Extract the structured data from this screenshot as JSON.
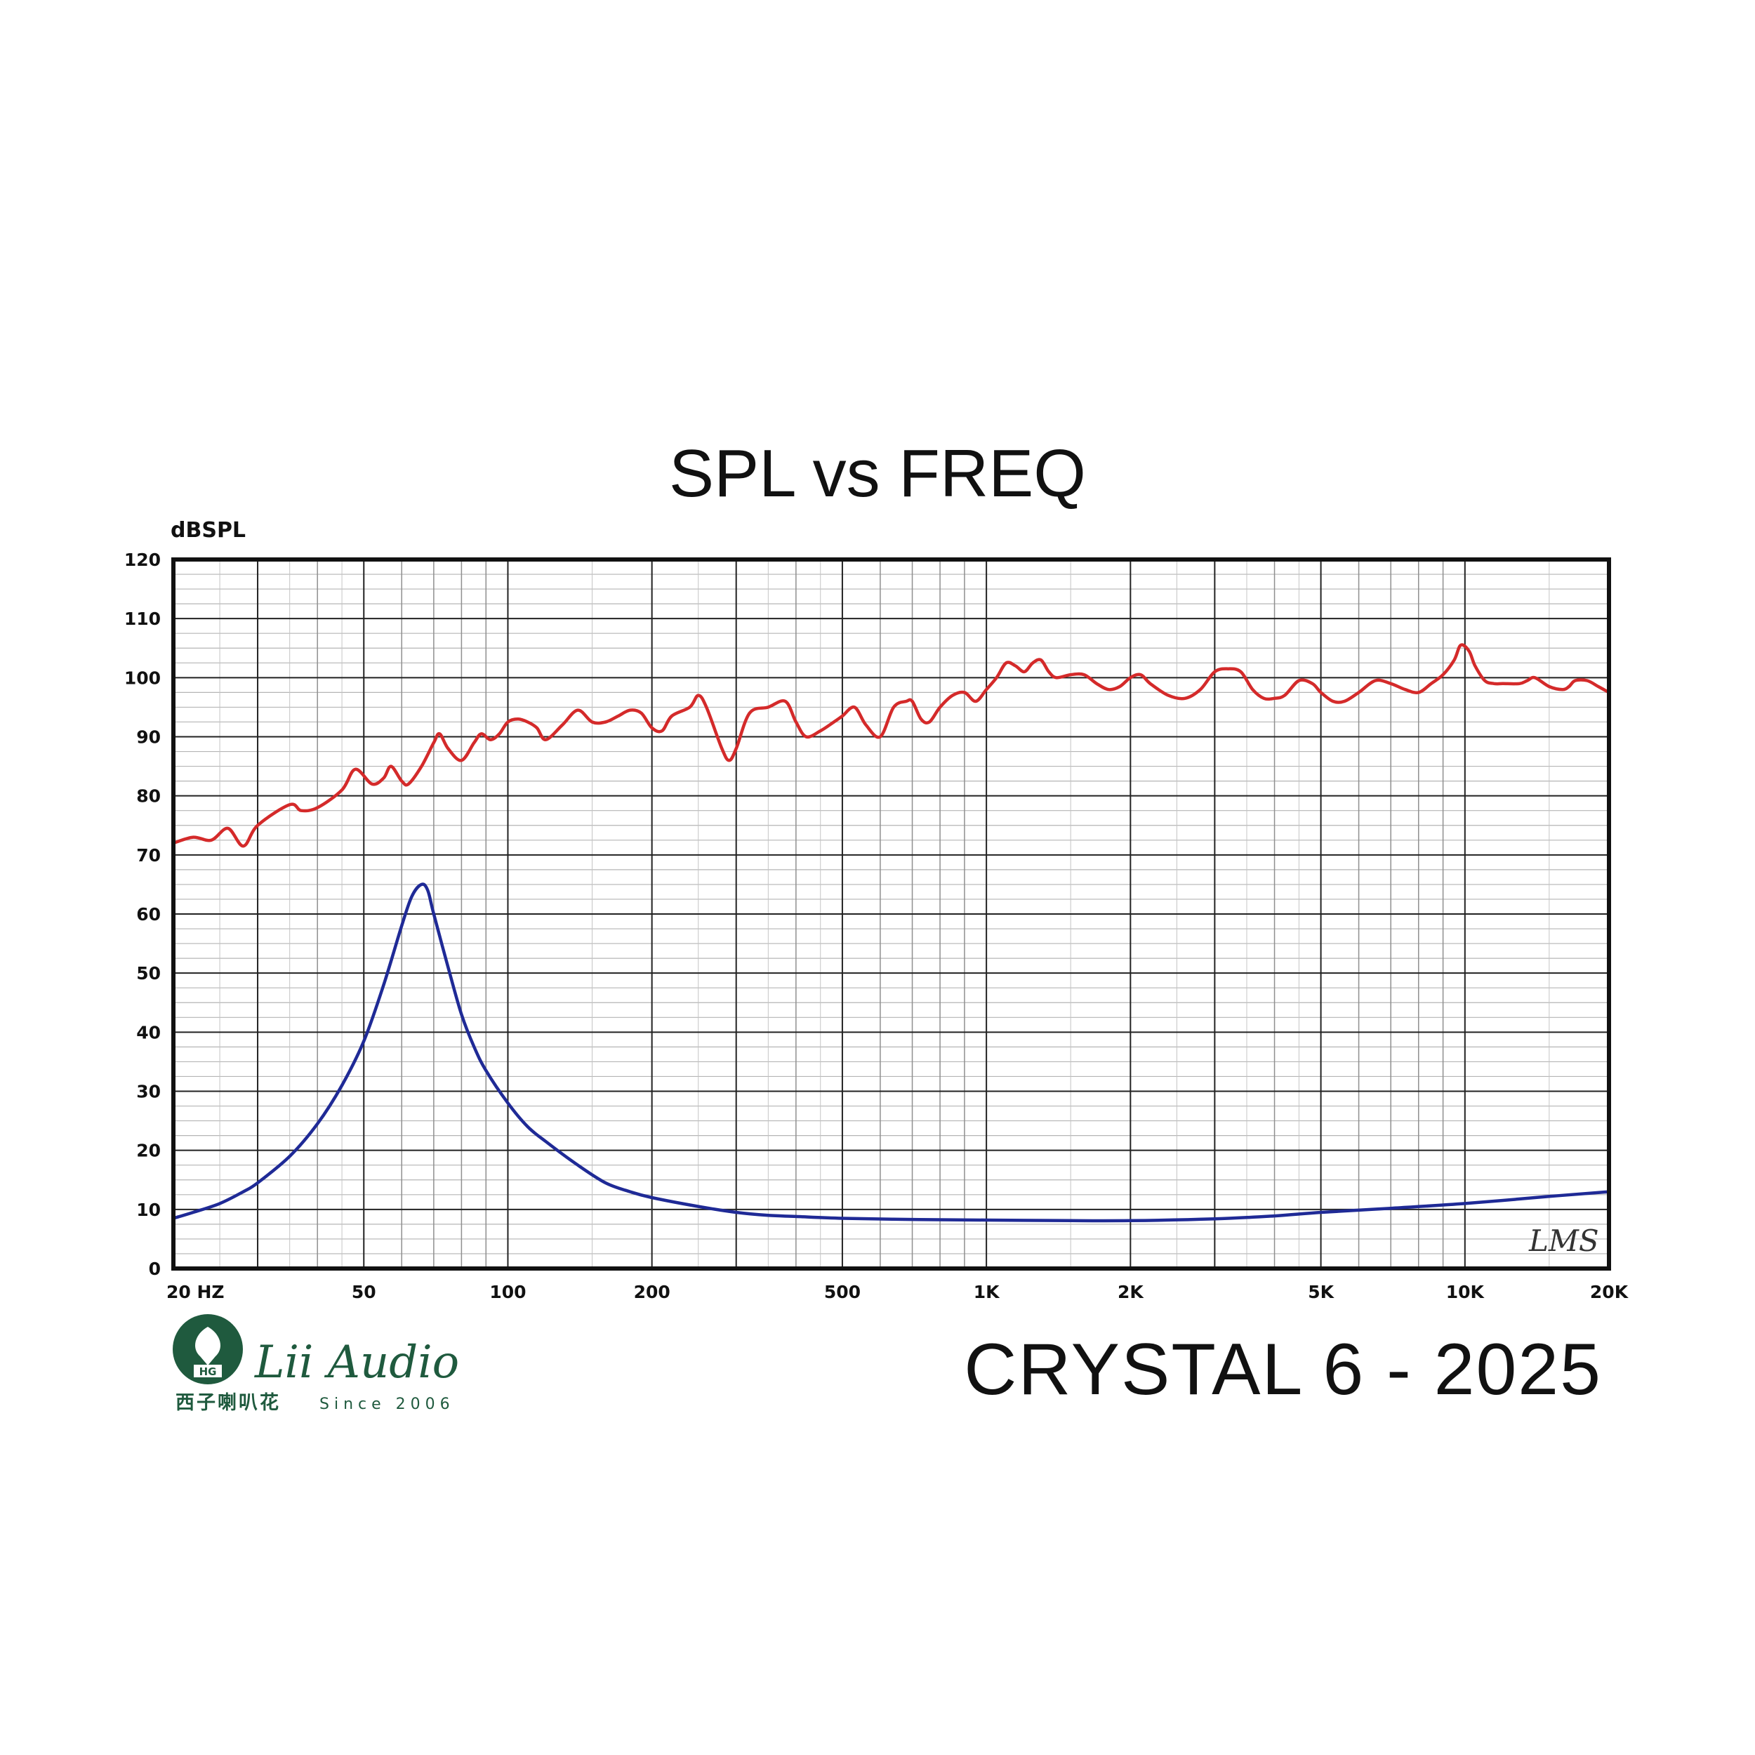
{
  "title": "SPL vs FREQ",
  "model_label": "CRYSTAL 6 - 2025",
  "brand": {
    "name": "Lii Audio",
    "chinese": "西子喇叭花",
    "since": "Since 2006",
    "emblem_text": "HG",
    "color": "#1f5a3e"
  },
  "watermark": "LMS",
  "chart_data": {
    "type": "line",
    "title": "SPL vs FREQ",
    "ylabel": "dBSPL",
    "xlabel": "",
    "x_scale": "log",
    "xlim": [
      20,
      20000
    ],
    "ylim": [
      0,
      120
    ],
    "grid": true,
    "legend": "none",
    "y_ticks": [
      "0",
      "10",
      "20",
      "30",
      "40",
      "50",
      "60",
      "70",
      "80",
      "90",
      "100",
      "110",
      "120"
    ],
    "x_ticks": [
      {
        "value": 20,
        "label": "20 HZ"
      },
      {
        "value": 50,
        "label": "50"
      },
      {
        "value": 100,
        "label": "100"
      },
      {
        "value": 200,
        "label": "200"
      },
      {
        "value": 500,
        "label": "500"
      },
      {
        "value": 1000,
        "label": "1K"
      },
      {
        "value": 2000,
        "label": "2K"
      },
      {
        "value": 5000,
        "label": "5K"
      },
      {
        "value": 10000,
        "label": "10K"
      },
      {
        "value": 20000,
        "label": "20K"
      }
    ],
    "series": [
      {
        "color": "#d42a2a",
        "points": [
          [
            20,
            72
          ],
          [
            22,
            73
          ],
          [
            24,
            72.5
          ],
          [
            26,
            74.5
          ],
          [
            28,
            71.5
          ],
          [
            30,
            75
          ],
          [
            35,
            78.5
          ],
          [
            37,
            77.5
          ],
          [
            40,
            78
          ],
          [
            45,
            81
          ],
          [
            48,
            84.5
          ],
          [
            52,
            82
          ],
          [
            55,
            83
          ],
          [
            57,
            85
          ],
          [
            60,
            82.5
          ],
          [
            62,
            82
          ],
          [
            66,
            85
          ],
          [
            70,
            89
          ],
          [
            72,
            90.5
          ],
          [
            75,
            88
          ],
          [
            80,
            86
          ],
          [
            85,
            89
          ],
          [
            88,
            90.5
          ],
          [
            92,
            89.5
          ],
          [
            96,
            90.5
          ],
          [
            100,
            92.5
          ],
          [
            105,
            93
          ],
          [
            110,
            92.5
          ],
          [
            115,
            91.5
          ],
          [
            120,
            89.5
          ],
          [
            130,
            92
          ],
          [
            140,
            94.5
          ],
          [
            150,
            92.5
          ],
          [
            160,
            92.5
          ],
          [
            170,
            93.5
          ],
          [
            180,
            94.5
          ],
          [
            190,
            94
          ],
          [
            200,
            91.5
          ],
          [
            210,
            91
          ],
          [
            220,
            93.5
          ],
          [
            240,
            95
          ],
          [
            250,
            97
          ],
          [
            260,
            95
          ],
          [
            280,
            88
          ],
          [
            290,
            86
          ],
          [
            300,
            88
          ],
          [
            320,
            94
          ],
          [
            350,
            95
          ],
          [
            380,
            96
          ],
          [
            400,
            92.5
          ],
          [
            420,
            90
          ],
          [
            450,
            91
          ],
          [
            480,
            92.5
          ],
          [
            500,
            93.5
          ],
          [
            530,
            95
          ],
          [
            560,
            92
          ],
          [
            600,
            90
          ],
          [
            640,
            95
          ],
          [
            680,
            96
          ],
          [
            700,
            96
          ],
          [
            730,
            93
          ],
          [
            760,
            92.5
          ],
          [
            800,
            95
          ],
          [
            850,
            97
          ],
          [
            900,
            97.5
          ],
          [
            950,
            96
          ],
          [
            1000,
            98
          ],
          [
            1050,
            100
          ],
          [
            1100,
            102.5
          ],
          [
            1150,
            102
          ],
          [
            1200,
            101
          ],
          [
            1250,
            102.5
          ],
          [
            1300,
            103
          ],
          [
            1350,
            101
          ],
          [
            1400,
            100
          ],
          [
            1500,
            100.5
          ],
          [
            1600,
            100.5
          ],
          [
            1700,
            99
          ],
          [
            1800,
            98
          ],
          [
            1900,
            98.5
          ],
          [
            2000,
            100
          ],
          [
            2100,
            100.5
          ],
          [
            2200,
            99
          ],
          [
            2400,
            97
          ],
          [
            2600,
            96.5
          ],
          [
            2800,
            98
          ],
          [
            3000,
            101
          ],
          [
            3200,
            101.5
          ],
          [
            3400,
            101
          ],
          [
            3600,
            98
          ],
          [
            3800,
            96.5
          ],
          [
            4000,
            96.5
          ],
          [
            4200,
            97
          ],
          [
            4500,
            99.5
          ],
          [
            4800,
            99
          ],
          [
            5000,
            97.5
          ],
          [
            5300,
            96
          ],
          [
            5600,
            96
          ],
          [
            6000,
            97.5
          ],
          [
            6500,
            99.5
          ],
          [
            7000,
            99
          ],
          [
            7500,
            98
          ],
          [
            8000,
            97.5
          ],
          [
            8500,
            99
          ],
          [
            9000,
            100.5
          ],
          [
            9500,
            103
          ],
          [
            9800,
            105.5
          ],
          [
            10200,
            104.5
          ],
          [
            10500,
            102
          ],
          [
            11000,
            99.5
          ],
          [
            11500,
            99
          ],
          [
            12000,
            99
          ],
          [
            13000,
            99
          ],
          [
            13500,
            99.5
          ],
          [
            14000,
            100
          ],
          [
            15000,
            98.5
          ],
          [
            16000,
            98
          ],
          [
            16500,
            98.5
          ],
          [
            17000,
            99.5
          ],
          [
            18000,
            99.5
          ],
          [
            19000,
            98.5
          ],
          [
            20000,
            97.5
          ]
        ]
      },
      {
        "color": "#1f2a96",
        "points": [
          [
            20,
            8.5
          ],
          [
            22,
            9.5
          ],
          [
            25,
            11
          ],
          [
            28,
            13
          ],
          [
            30,
            14.5
          ],
          [
            35,
            19
          ],
          [
            40,
            24.5
          ],
          [
            45,
            31
          ],
          [
            50,
            38.5
          ],
          [
            55,
            48
          ],
          [
            60,
            58
          ],
          [
            63,
            63
          ],
          [
            66,
            65
          ],
          [
            68,
            64
          ],
          [
            70,
            60
          ],
          [
            75,
            51
          ],
          [
            80,
            43
          ],
          [
            85,
            37.5
          ],
          [
            90,
            33.5
          ],
          [
            100,
            28
          ],
          [
            110,
            24
          ],
          [
            120,
            21.5
          ],
          [
            140,
            17.5
          ],
          [
            160,
            14.5
          ],
          [
            180,
            13
          ],
          [
            200,
            12
          ],
          [
            250,
            10.5
          ],
          [
            300,
            9.5
          ],
          [
            350,
            9
          ],
          [
            400,
            8.8
          ],
          [
            500,
            8.5
          ],
          [
            700,
            8.3
          ],
          [
            1000,
            8.2
          ],
          [
            1500,
            8.1
          ],
          [
            2000,
            8.1
          ],
          [
            3000,
            8.4
          ],
          [
            4000,
            8.9
          ],
          [
            5000,
            9.5
          ],
          [
            7000,
            10.2
          ],
          [
            10000,
            11
          ],
          [
            15000,
            12.2
          ],
          [
            20000,
            13
          ]
        ]
      }
    ]
  }
}
